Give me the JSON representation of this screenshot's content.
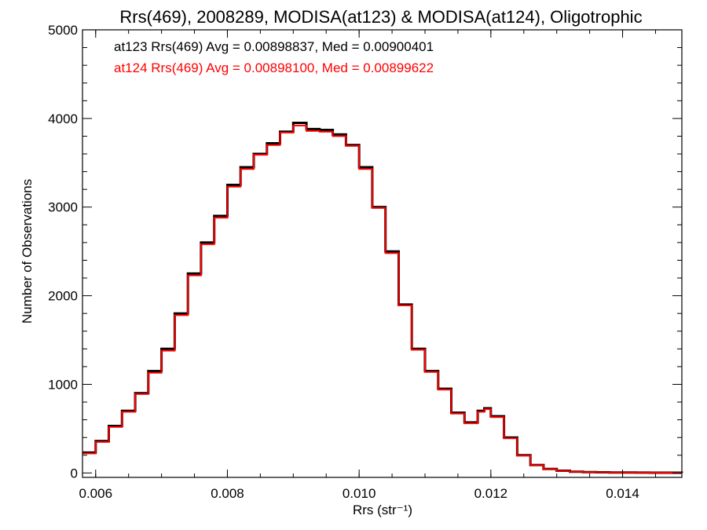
{
  "chart_data": {
    "type": "line",
    "step": true,
    "title": "Rrs(469), 2008289, MODISA(at123) & MODISA(at124), Oligotrophic",
    "xlabel": "Rrs (str⁻¹)",
    "ylabel": "Number of Observations",
    "xlim": [
      0.0058,
      0.0149
    ],
    "ylim": [
      -50,
      5000
    ],
    "xticks": [
      0.006,
      0.008,
      0.01,
      0.012,
      0.014
    ],
    "xtick_labels": [
      "0.006",
      "0.008",
      "0.010",
      "0.012",
      "0.014"
    ],
    "yticks": [
      0,
      1000,
      2000,
      3000,
      4000,
      5000
    ],
    "ytick_labels": [
      "0",
      "1000",
      "2000",
      "3000",
      "4000",
      "5000"
    ],
    "grid": false,
    "annotations": [
      {
        "text": "at123 Rrs(469) Avg = 0.00898837, Med = 0.00900401",
        "color": "#000000"
      },
      {
        "text": "at124 Rrs(469) Avg = 0.00898100, Med = 0.00899622",
        "color": "#ff0000"
      }
    ],
    "x": [
      0.0058,
      0.006,
      0.0062,
      0.0064,
      0.0066,
      0.0068,
      0.007,
      0.0072,
      0.0074,
      0.0076,
      0.0078,
      0.008,
      0.0082,
      0.0084,
      0.0086,
      0.0088,
      0.009,
      0.0092,
      0.0094,
      0.0096,
      0.0098,
      0.01,
      0.0102,
      0.0104,
      0.0106,
      0.0108,
      0.011,
      0.0112,
      0.0114,
      0.0116,
      0.0118,
      0.0119,
      0.012,
      0.0122,
      0.0124,
      0.0126,
      0.0128,
      0.013,
      0.0132,
      0.0134,
      0.0136,
      0.0138,
      0.014,
      0.0142,
      0.0144,
      0.0146,
      0.0149
    ],
    "series": [
      {
        "name": "at123",
        "color": "#000000",
        "values": [
          230,
          360,
          530,
          700,
          900,
          1150,
          1400,
          1800,
          2250,
          2600,
          2900,
          3250,
          3450,
          3600,
          3720,
          3850,
          3950,
          3880,
          3870,
          3820,
          3700,
          3450,
          3000,
          2500,
          1900,
          1400,
          1150,
          950,
          680,
          570,
          700,
          730,
          640,
          400,
          200,
          90,
          45,
          25,
          15,
          10,
          8,
          6,
          5,
          4,
          3,
          3,
          2
        ]
      },
      {
        "name": "at124",
        "color": "#ff0000",
        "values": [
          220,
          350,
          520,
          690,
          890,
          1130,
          1380,
          1780,
          2230,
          2580,
          2880,
          3230,
          3430,
          3590,
          3700,
          3840,
          3920,
          3860,
          3850,
          3800,
          3690,
          3430,
          2990,
          2480,
          1890,
          1390,
          1140,
          940,
          670,
          560,
          690,
          720,
          630,
          390,
          195,
          88,
          44,
          24,
          14,
          10,
          8,
          6,
          5,
          4,
          3,
          3,
          2
        ]
      }
    ]
  }
}
